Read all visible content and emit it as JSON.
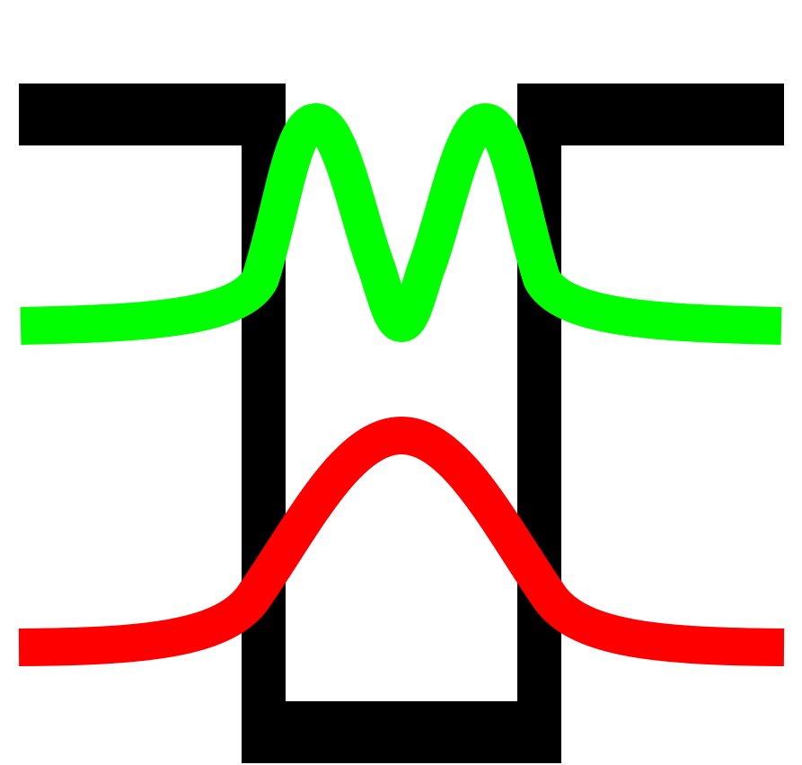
{
  "diagram": {
    "type": "finite-potential-well-wavefunctions",
    "colors": {
      "background": "#ffffff",
      "well": "#000000",
      "ground_state": "#ff0000",
      "excited_state": "#00ff00"
    },
    "elements": {
      "well": {
        "kind": "square-well-outline",
        "color": "#000000"
      },
      "ground_state": {
        "kind": "single-hump-wavefunction",
        "color": "#ff0000",
        "nodes": 0
      },
      "excited_state": {
        "kind": "double-hump-wavefunction",
        "color": "#00ff00",
        "nodes": 1
      }
    }
  }
}
